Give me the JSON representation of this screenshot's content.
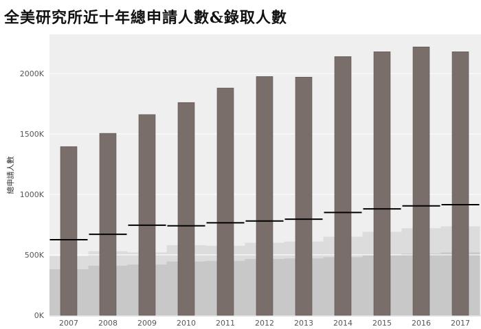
{
  "chart_data": {
    "type": "bar",
    "title": "全美研究所近十年總申請人數&錄取人數",
    "xlabel": "",
    "ylabel": "總申請人數",
    "ylim": [
      0,
      2300000
    ],
    "yticks": [
      {
        "value": 0,
        "label": "0K"
      },
      {
        "value": 500000,
        "label": "500K"
      },
      {
        "value": 1000000,
        "label": "1000K"
      },
      {
        "value": 1500000,
        "label": "1500K"
      },
      {
        "value": 2000000,
        "label": "2000K"
      }
    ],
    "categories": [
      "2007",
      "2008",
      "2009",
      "2010",
      "2011",
      "2012",
      "2013",
      "2014",
      "2015",
      "2016",
      "2017"
    ],
    "series": [
      {
        "values": [
          1395000,
          1505000,
          1660000,
          1760000,
          1880000,
          1975000,
          1970000,
          2140000,
          2180000,
          2220000,
          2180000
        ]
      },
      {
        "values": [
          625000,
          670000,
          745000,
          740000,
          765000,
          780000,
          795000,
          850000,
          880000,
          905000,
          915000
        ]
      }
    ],
    "grid": true,
    "colors": {
      "bar": "#7a6e6b",
      "line": "#000000",
      "background": "#efefef",
      "band_light": "#dcdcdc",
      "band_dark": "#c8c8c8"
    }
  }
}
